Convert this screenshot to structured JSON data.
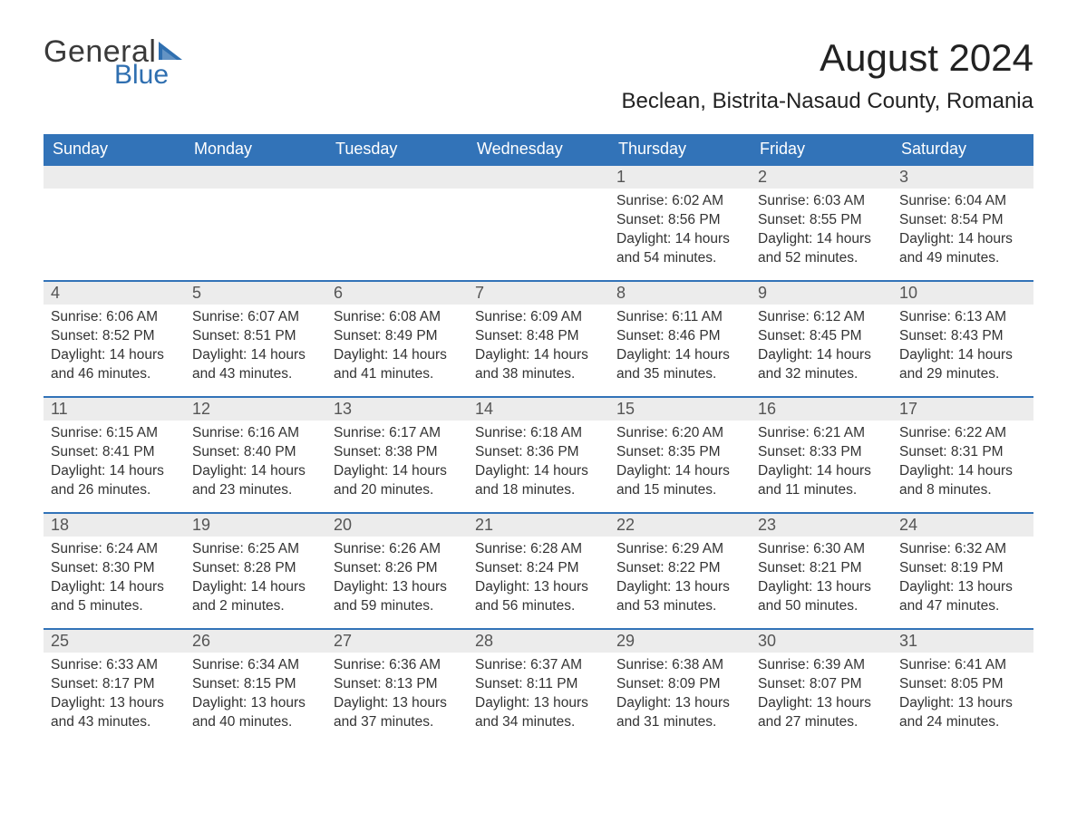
{
  "logo": {
    "text1": "General",
    "text2": "Blue",
    "tri_color": "#2f6fb0"
  },
  "title": "August 2024",
  "location": "Beclean, Bistrita-Nasaud County, Romania",
  "colors": {
    "header_bg": "#3273b8",
    "header_text": "#ffffff",
    "daynum_bg": "#ececec",
    "daynum_border": "#3273b8",
    "body_text": "#333333"
  },
  "weekdays": [
    "Sunday",
    "Monday",
    "Tuesday",
    "Wednesday",
    "Thursday",
    "Friday",
    "Saturday"
  ],
  "weeks": [
    [
      null,
      null,
      null,
      null,
      {
        "n": "1",
        "sr": "6:02 AM",
        "ss": "8:56 PM",
        "dl": "14 hours and 54 minutes."
      },
      {
        "n": "2",
        "sr": "6:03 AM",
        "ss": "8:55 PM",
        "dl": "14 hours and 52 minutes."
      },
      {
        "n": "3",
        "sr": "6:04 AM",
        "ss": "8:54 PM",
        "dl": "14 hours and 49 minutes."
      }
    ],
    [
      {
        "n": "4",
        "sr": "6:06 AM",
        "ss": "8:52 PM",
        "dl": "14 hours and 46 minutes."
      },
      {
        "n": "5",
        "sr": "6:07 AM",
        "ss": "8:51 PM",
        "dl": "14 hours and 43 minutes."
      },
      {
        "n": "6",
        "sr": "6:08 AM",
        "ss": "8:49 PM",
        "dl": "14 hours and 41 minutes."
      },
      {
        "n": "7",
        "sr": "6:09 AM",
        "ss": "8:48 PM",
        "dl": "14 hours and 38 minutes."
      },
      {
        "n": "8",
        "sr": "6:11 AM",
        "ss": "8:46 PM",
        "dl": "14 hours and 35 minutes."
      },
      {
        "n": "9",
        "sr": "6:12 AM",
        "ss": "8:45 PM",
        "dl": "14 hours and 32 minutes."
      },
      {
        "n": "10",
        "sr": "6:13 AM",
        "ss": "8:43 PM",
        "dl": "14 hours and 29 minutes."
      }
    ],
    [
      {
        "n": "11",
        "sr": "6:15 AM",
        "ss": "8:41 PM",
        "dl": "14 hours and 26 minutes."
      },
      {
        "n": "12",
        "sr": "6:16 AM",
        "ss": "8:40 PM",
        "dl": "14 hours and 23 minutes."
      },
      {
        "n": "13",
        "sr": "6:17 AM",
        "ss": "8:38 PM",
        "dl": "14 hours and 20 minutes."
      },
      {
        "n": "14",
        "sr": "6:18 AM",
        "ss": "8:36 PM",
        "dl": "14 hours and 18 minutes."
      },
      {
        "n": "15",
        "sr": "6:20 AM",
        "ss": "8:35 PM",
        "dl": "14 hours and 15 minutes."
      },
      {
        "n": "16",
        "sr": "6:21 AM",
        "ss": "8:33 PM",
        "dl": "14 hours and 11 minutes."
      },
      {
        "n": "17",
        "sr": "6:22 AM",
        "ss": "8:31 PM",
        "dl": "14 hours and 8 minutes."
      }
    ],
    [
      {
        "n": "18",
        "sr": "6:24 AM",
        "ss": "8:30 PM",
        "dl": "14 hours and 5 minutes."
      },
      {
        "n": "19",
        "sr": "6:25 AM",
        "ss": "8:28 PM",
        "dl": "14 hours and 2 minutes."
      },
      {
        "n": "20",
        "sr": "6:26 AM",
        "ss": "8:26 PM",
        "dl": "13 hours and 59 minutes."
      },
      {
        "n": "21",
        "sr": "6:28 AM",
        "ss": "8:24 PM",
        "dl": "13 hours and 56 minutes."
      },
      {
        "n": "22",
        "sr": "6:29 AM",
        "ss": "8:22 PM",
        "dl": "13 hours and 53 minutes."
      },
      {
        "n": "23",
        "sr": "6:30 AM",
        "ss": "8:21 PM",
        "dl": "13 hours and 50 minutes."
      },
      {
        "n": "24",
        "sr": "6:32 AM",
        "ss": "8:19 PM",
        "dl": "13 hours and 47 minutes."
      }
    ],
    [
      {
        "n": "25",
        "sr": "6:33 AM",
        "ss": "8:17 PM",
        "dl": "13 hours and 43 minutes."
      },
      {
        "n": "26",
        "sr": "6:34 AM",
        "ss": "8:15 PM",
        "dl": "13 hours and 40 minutes."
      },
      {
        "n": "27",
        "sr": "6:36 AM",
        "ss": "8:13 PM",
        "dl": "13 hours and 37 minutes."
      },
      {
        "n": "28",
        "sr": "6:37 AM",
        "ss": "8:11 PM",
        "dl": "13 hours and 34 minutes."
      },
      {
        "n": "29",
        "sr": "6:38 AM",
        "ss": "8:09 PM",
        "dl": "13 hours and 31 minutes."
      },
      {
        "n": "30",
        "sr": "6:39 AM",
        "ss": "8:07 PM",
        "dl": "13 hours and 27 minutes."
      },
      {
        "n": "31",
        "sr": "6:41 AM",
        "ss": "8:05 PM",
        "dl": "13 hours and 24 minutes."
      }
    ]
  ],
  "labels": {
    "sunrise": "Sunrise:",
    "sunset": "Sunset:",
    "daylight": "Daylight:"
  }
}
